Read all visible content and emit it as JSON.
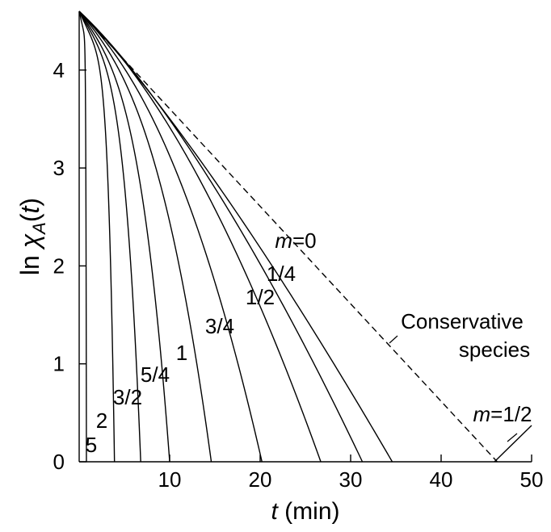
{
  "chart_data": {
    "type": "line",
    "xlabel": {
      "var": "t",
      "rest": " (min)"
    },
    "ylabel": {
      "ln": "ln ",
      "chi": "χ",
      "sub": "A",
      "open": "(",
      "var": "t",
      "close": ")"
    },
    "xlim": [
      0,
      50
    ],
    "ylim": [
      0,
      4.6
    ],
    "x_ticks": [
      "10",
      "20",
      "30",
      "40",
      "50"
    ],
    "y_ticks": [
      "0",
      "1",
      "2",
      "3",
      "4"
    ],
    "y0": 4.6,
    "grid": false,
    "series": [
      {
        "label": "m=0",
        "label_italic": "m",
        "label_rest": "=0",
        "x_end": 34.6
      },
      {
        "label": "1/4",
        "x_end": 31.3
      },
      {
        "label": "1/2",
        "x_end": 26.7
      },
      {
        "label": "3/4",
        "x_end": 20.2
      },
      {
        "label": "1",
        "x_end": 14.6
      },
      {
        "label": "5/4",
        "x_end": 10.0
      },
      {
        "label": "3/2",
        "x_end": 6.8
      },
      {
        "label": "2",
        "x_end": 3.9
      },
      {
        "label": "5",
        "x_end": 0.8
      }
    ],
    "conservative": {
      "label_line1": "Conservative",
      "label_line2": "species",
      "x_end": 46.2,
      "style": "dashed"
    },
    "annotation": {
      "label_italic": "m",
      "label_rest": "=1/2"
    }
  }
}
